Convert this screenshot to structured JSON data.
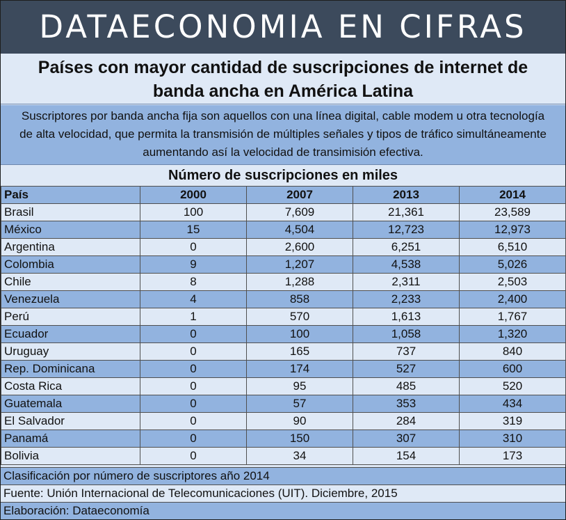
{
  "banner": "DATAECONOMIA EN CIFRAS",
  "title_line1": "Países con mayor cantidad de suscripciones de internet de",
  "title_line2": "banda ancha en América Latina",
  "description": "Suscriptores por banda ancha fija son aquellos con una línea digital, cable modem u otra tecnología de alta velocidad, que permita la transmisión de múltiples señales y tipos de tráfico simultáneamente aumentando así la velocidad de transimisión efectiva.",
  "subheading": "Número de suscripciones en miles",
  "table": {
    "headers": [
      "País",
      "2000",
      "2007",
      "2013",
      "2014"
    ],
    "rows": [
      [
        "Brasil",
        "100",
        "7,609",
        "21,361",
        "23,589"
      ],
      [
        "México",
        "15",
        "4,504",
        "12,723",
        "12,973"
      ],
      [
        "Argentina",
        "0",
        "2,600",
        "6,251",
        "6,510"
      ],
      [
        "Colombia",
        "9",
        "1,207",
        "4,538",
        "5,026"
      ],
      [
        "Chile",
        "8",
        "1,288",
        "2,311",
        "2,503"
      ],
      [
        "Venezuela",
        "4",
        "858",
        "2,233",
        "2,400"
      ],
      [
        "Perú",
        "1",
        "570",
        "1,613",
        "1,767"
      ],
      [
        "Ecuador",
        "0",
        "100",
        "1,058",
        "1,320"
      ],
      [
        "Uruguay",
        "0",
        "165",
        "737",
        "840"
      ],
      [
        "Rep. Dominicana",
        "0",
        "174",
        "527",
        "600"
      ],
      [
        "Costa Rica",
        "0",
        "95",
        "485",
        "520"
      ],
      [
        "Guatemala",
        "0",
        "57",
        "353",
        "434"
      ],
      [
        "El Salvador",
        "0",
        "90",
        "284",
        "319"
      ],
      [
        "Panamá",
        "0",
        "150",
        "307",
        "310"
      ],
      [
        "Bolivia",
        "0",
        "34",
        "154",
        "173"
      ]
    ]
  },
  "footer": {
    "classification": "Clasificación por número de suscriptores año 2014",
    "source": "Fuente: Unión Internacional de Telecomunicaciones (UIT). Diciembre, 2015",
    "credit": "Elaboración: Dataeconomía"
  },
  "colors": {
    "banner_bg": "#3c4a5c",
    "light_row": "#dfe9f6",
    "dark_row": "#92b3df"
  }
}
